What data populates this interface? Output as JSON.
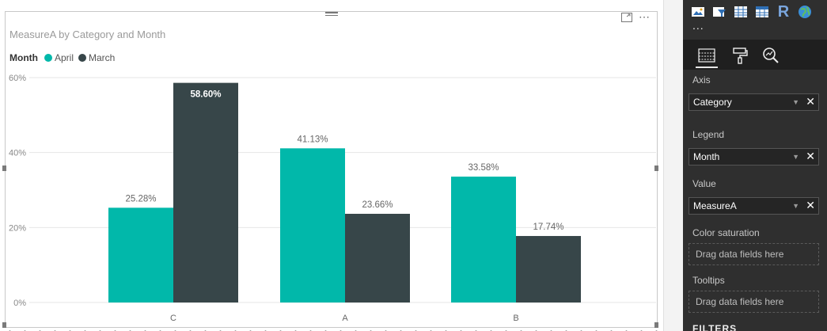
{
  "chart": {
    "title": "MeasureA by Category and Month",
    "legend_title": "Month"
  },
  "chart_data": {
    "type": "bar",
    "title": "MeasureA by Category and Month",
    "xlabel": "",
    "ylabel": "",
    "categories": [
      "C",
      "A",
      "B"
    ],
    "series": [
      {
        "name": "April",
        "color": "#01b8aa",
        "values": [
          25.28,
          41.13,
          33.58
        ],
        "labels": [
          "25.28%",
          "41.13%",
          "33.58%"
        ]
      },
      {
        "name": "March",
        "color": "#374649",
        "values": [
          58.6,
          23.66,
          17.74
        ],
        "labels": [
          "58.60%",
          "23.66%",
          "17.74%"
        ]
      }
    ],
    "yticks": [
      "0%",
      "20%",
      "40%",
      "60%"
    ],
    "ytick_values": [
      0,
      20,
      40,
      60
    ],
    "ylim": [
      0,
      60
    ],
    "grid": true,
    "legend_position": "top-left"
  },
  "panel": {
    "more_label": "...",
    "axis_label": "Axis",
    "axis_value": "Category",
    "legend_label": "Legend",
    "legend_value": "Month",
    "value_label": "Value",
    "value_value": "MeasureA",
    "saturation_label": "Color saturation",
    "saturation_drop": "Drag data fields here",
    "tooltips_label": "Tooltips",
    "tooltips_drop": "Drag data fields here",
    "filters_title": "FILTERS",
    "viz_icons": [
      "image-icon",
      "funnel-icon",
      "table-icon",
      "matrix-icon",
      "r-visual-icon",
      "globe-icon"
    ],
    "r_glyph": "R"
  }
}
